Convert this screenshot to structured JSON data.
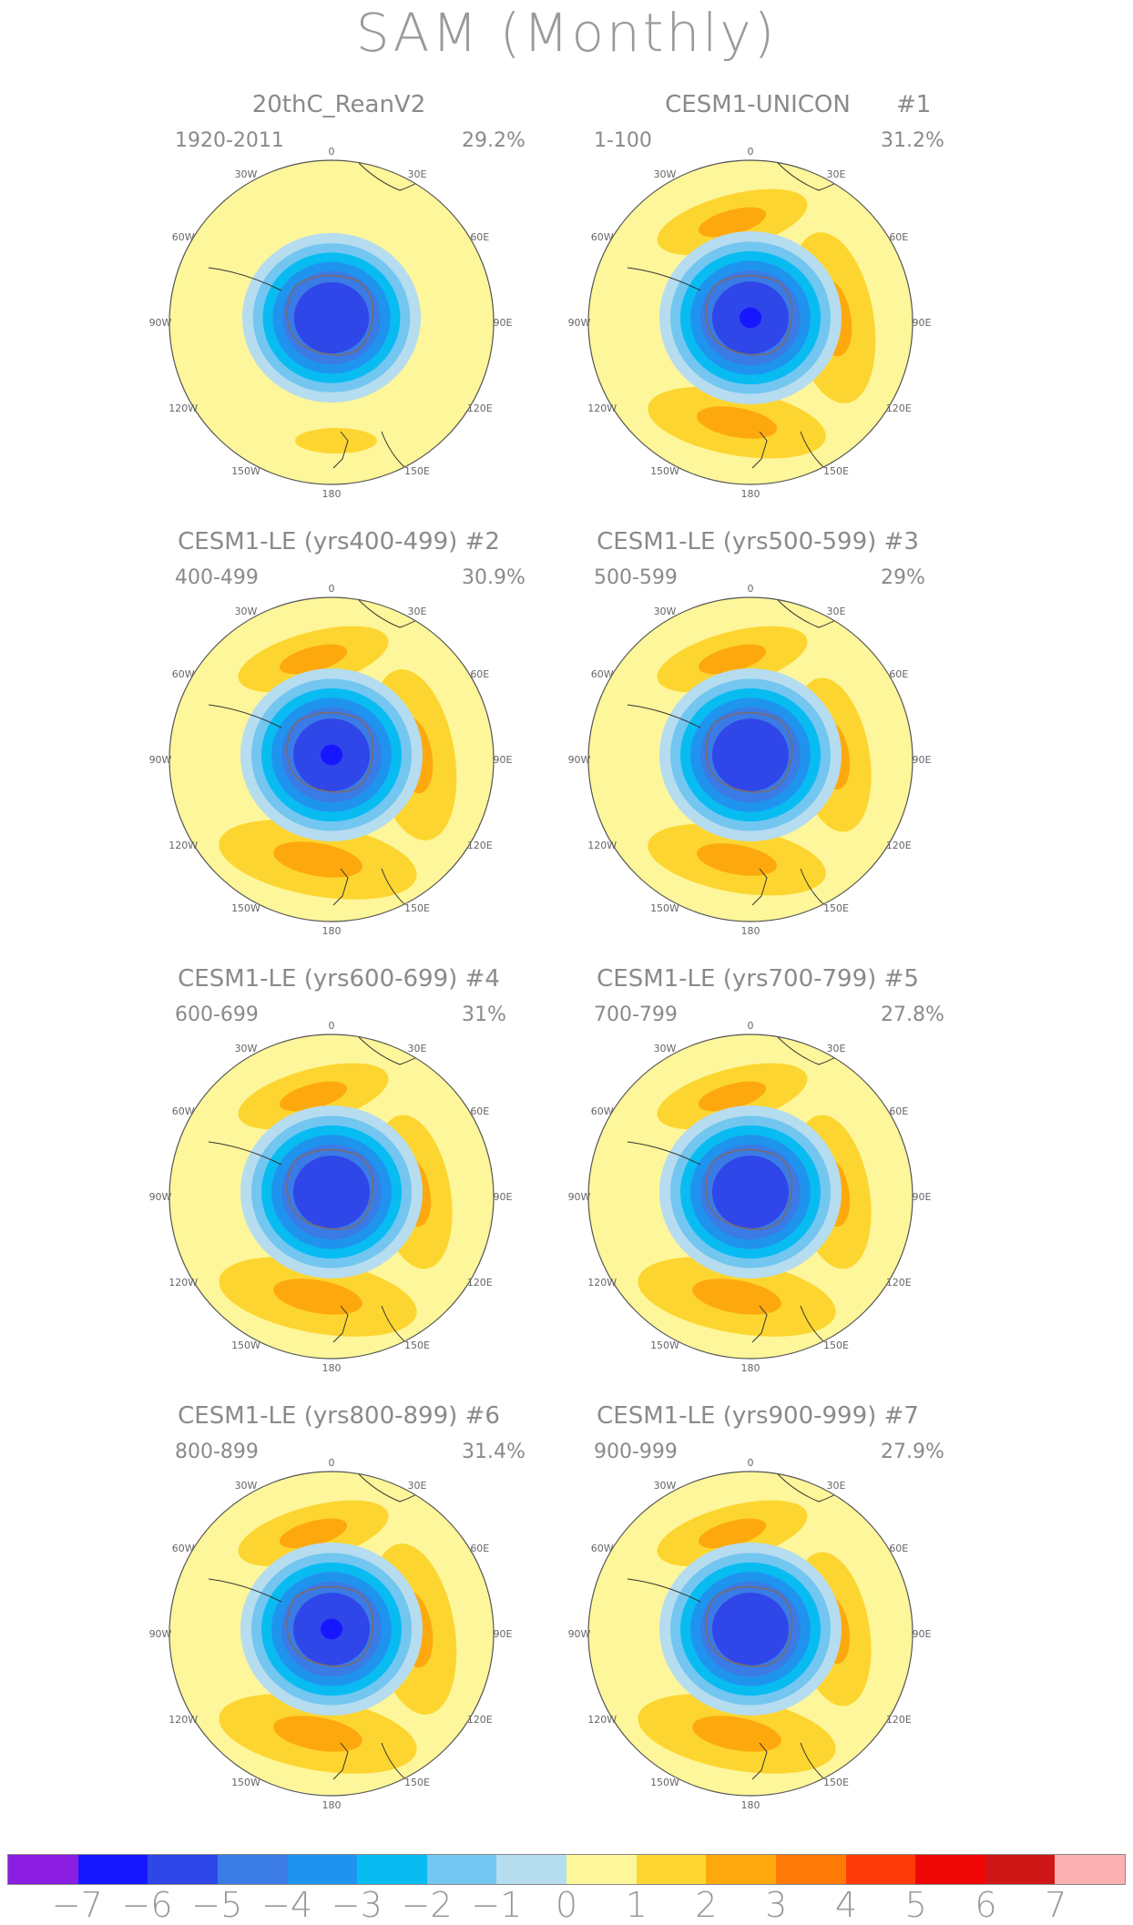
{
  "title": "SAM (Monthly)",
  "panels": [
    {
      "title": "20thC_ReanV2",
      "number": "",
      "years": "1920-2011",
      "variance": "29.2%"
    },
    {
      "title": "CESM1-UNICON",
      "number": "#1",
      "years": "1-100",
      "variance": "31.2%"
    },
    {
      "title": "CESM1-LE (yrs400-499) #2",
      "number": "",
      "years": "400-499",
      "variance": "30.9%"
    },
    {
      "title": "CESM1-LE (yrs500-599) #3",
      "number": "",
      "years": "500-599",
      "variance": "29%"
    },
    {
      "title": "CESM1-LE (yrs600-699) #4",
      "number": "",
      "years": "600-699",
      "variance": "31%"
    },
    {
      "title": "CESM1-LE (yrs700-799) #5",
      "number": "",
      "years": "700-799",
      "variance": "27.8%"
    },
    {
      "title": "CESM1-LE (yrs800-899) #6",
      "number": "",
      "years": "800-899",
      "variance": "31.4%"
    },
    {
      "title": "CESM1-LE (yrs900-999) #7",
      "number": "",
      "years": "900-999",
      "variance": "27.9%"
    }
  ],
  "longitude_labels": {
    "lon_0": "0",
    "lon_30e": "30E",
    "lon_60e": "60E",
    "lon_90e": "90E",
    "lon_120e": "120E",
    "lon_150e": "150E",
    "lon_180": "180",
    "lon_150w": "150W",
    "lon_120w": "120W",
    "lon_90w": "90W",
    "lon_60w": "60W",
    "lon_30w": "30W"
  },
  "colorbar": {
    "labels": [
      "−7",
      "−6",
      "−5",
      "−4",
      "−3",
      "−2",
      "−1",
      "0",
      "1",
      "2",
      "3",
      "4",
      "5",
      "6",
      "7"
    ],
    "colors": [
      "#8a1de0",
      "#1717ff",
      "#2f46e8",
      "#3a7be6",
      "#1f94ef",
      "#08bcf2",
      "#72c6f0",
      "#b6dcf0",
      "#fdf69a",
      "#fdd530",
      "#fda90e",
      "#fd7a06",
      "#fd3a08",
      "#ef0606",
      "#d01717",
      "#fbb1b1"
    ]
  }
}
